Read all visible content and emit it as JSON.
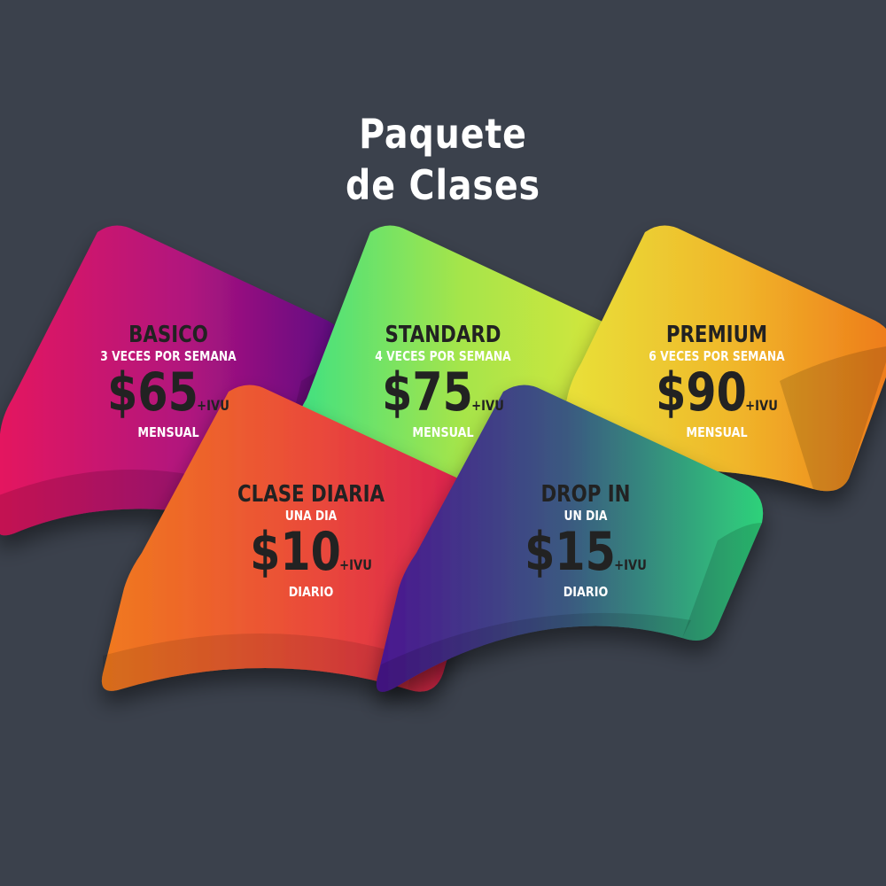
{
  "header": {
    "title_line1": "Paquete",
    "title_line2": "de Clases"
  },
  "plans": [
    {
      "name": "BASICO",
      "frequency": "3 VECES POR SEMANA",
      "price": "$65",
      "tax": "+IVU",
      "period": "MENSUAL",
      "colors": [
        "#e5135f",
        "#b0147e",
        "#5a0a83"
      ]
    },
    {
      "name": "STANDARD",
      "frequency": "4 VECES POR SEMANA",
      "price": "$75",
      "tax": "+IVU",
      "period": "MENSUAL",
      "colors": [
        "#2fe08a",
        "#a6e54a",
        "#d9e63a"
      ]
    },
    {
      "name": "PREMIUM",
      "frequency": "6 VECES POR SEMANA",
      "price": "$90",
      "tax": "+IVU",
      "period": "MENSUAL",
      "colors": [
        "#e8e63a",
        "#f0b62a",
        "#ee7a1a"
      ]
    },
    {
      "name": "CLASE DIARIA",
      "frequency": "UNA DIA",
      "price": "$10",
      "tax": "+IVU",
      "period": "DIARIO",
      "colors": [
        "#f07a1e",
        "#ea4a3a",
        "#d81a52"
      ]
    },
    {
      "name": "DROP IN",
      "frequency": "UN DIA",
      "price": "$15",
      "tax": "+IVU",
      "period": "DIARIO",
      "colors": [
        "#4a1590",
        "#3a5a80",
        "#2ed27a"
      ]
    }
  ]
}
